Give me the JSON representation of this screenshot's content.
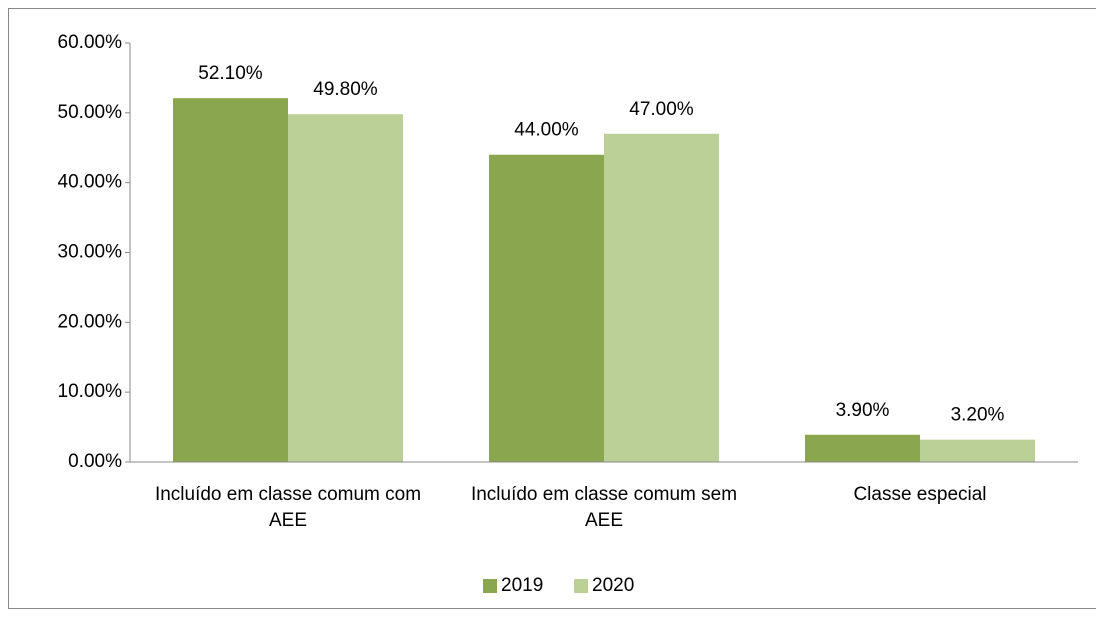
{
  "chart_data": {
    "type": "bar",
    "categories": [
      "Incluído em classe comum com AEE",
      "Incluído em classe comum sem AEE",
      "Classe especial"
    ],
    "series": [
      {
        "name": "2019",
        "color": "#8aa64f",
        "values": [
          52.1,
          44.0,
          3.9
        ],
        "value_labels": [
          "52.10%",
          "44.00%",
          "3.90%"
        ]
      },
      {
        "name": "2020",
        "color": "#bad097",
        "values": [
          49.8,
          47.0,
          3.2
        ],
        "value_labels": [
          "49.80%",
          "47.00%",
          "3.20%"
        ]
      }
    ],
    "ylim": [
      0,
      60
    ],
    "yticks": [
      {
        "value": 0,
        "label": "0.00%"
      },
      {
        "value": 10,
        "label": "10.00%"
      },
      {
        "value": 20,
        "label": "20.00%"
      },
      {
        "value": 30,
        "label": "30.00%"
      },
      {
        "value": 40,
        "label": "40.00%"
      },
      {
        "value": 50,
        "label": "50.00%"
      },
      {
        "value": 60,
        "label": "60.00%"
      }
    ],
    "grid": false,
    "legend": "bottom"
  }
}
